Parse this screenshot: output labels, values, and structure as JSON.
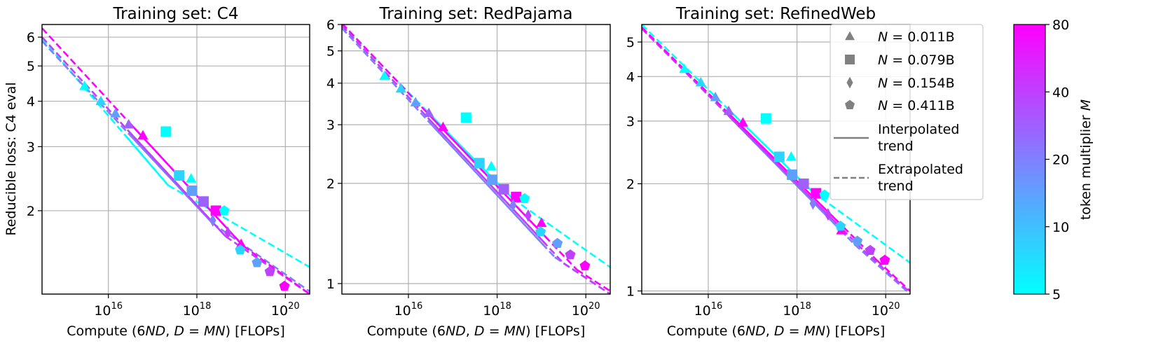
{
  "x_label_parts": [
    "Compute (6",
    "ND",
    ", ",
    "D",
    " = ",
    "MN",
    ") [FLOPs]"
  ],
  "y_label": "Reducible loss: C4 eval",
  "x_tick_base": "10",
  "x_tick_exps": [
    "16",
    "18",
    "20"
  ],
  "legend": {
    "markers": [
      {
        "shape": "triangle",
        "sym": "N",
        "eq": " = ",
        "val": "0.011B"
      },
      {
        "shape": "square",
        "sym": "N",
        "eq": " = ",
        "val": "0.079B"
      },
      {
        "shape": "diamond",
        "sym": "N",
        "eq": " = ",
        "val": "0.154B"
      },
      {
        "shape": "pentagon",
        "sym": "N",
        "eq": " = ",
        "val": "0.411B"
      }
    ],
    "lines": [
      {
        "style": "solid",
        "line1": "Interpolated",
        "line2": "trend"
      },
      {
        "style": "dashed",
        "line1": "Extrapolated",
        "line2": "trend"
      }
    ]
  },
  "colorbar": {
    "label_text": "token multiplier ",
    "label_sym": "M",
    "ticks": [
      "5",
      "10",
      "20",
      "40",
      "80"
    ],
    "min": 5,
    "max": 80,
    "low_color": "#00ffff",
    "high_color": "#ff00ff"
  },
  "chart_data": [
    {
      "type": "scatter",
      "title": "Training set: C4",
      "xlabel": "Compute (6ND, D = MN) [FLOPs]",
      "ylabel": "Reducible loss: C4 eval",
      "xscale": "log",
      "yscale": "log",
      "xlim_log10": [
        14.5,
        20.55
      ],
      "ylim": [
        1.18,
        6.5
      ],
      "y_ticks": [
        {
          "v": 2,
          "label": "2"
        },
        {
          "v": 3,
          "label": "3"
        },
        {
          "v": 4,
          "label": "4"
        },
        {
          "v": 5,
          "label": "5"
        },
        {
          "v": 6,
          "label": "6"
        }
      ],
      "trends": [
        {
          "M": 5,
          "p1": [
            14.5,
            5.95
          ],
          "pS": [
            17.35,
            2.35
          ],
          "p2": [
            20.55,
            1.4
          ]
        },
        {
          "M": 20,
          "p1": [
            14.5,
            5.85
          ],
          "pS": [
            18.35,
            1.85
          ],
          "p2": [
            20.55,
            1.2
          ]
        },
        {
          "M": 40,
          "p1": [
            14.5,
            6.0
          ],
          "pS": [
            18.65,
            1.7
          ],
          "p2": [
            20.55,
            1.18
          ]
        },
        {
          "M": 80,
          "p1": [
            14.5,
            6.35
          ],
          "pS": [
            19.05,
            1.6
          ],
          "p2": [
            20.55,
            1.18
          ]
        }
      ],
      "points": [
        {
          "shape": "triangle",
          "logx": 15.46,
          "y": 4.4,
          "M": 5
        },
        {
          "shape": "triangle",
          "logx": 15.83,
          "y": 4.0,
          "M": 8
        },
        {
          "shape": "triangle",
          "logx": 16.16,
          "y": 3.7,
          "M": 14
        },
        {
          "shape": "triangle",
          "logx": 16.46,
          "y": 3.45,
          "M": 28
        },
        {
          "shape": "triangle",
          "logx": 16.78,
          "y": 3.22,
          "M": 80
        },
        {
          "shape": "square",
          "logx": 17.3,
          "y": 3.3,
          "M": 5
        },
        {
          "shape": "square",
          "logx": 17.6,
          "y": 2.5,
          "M": 8
        },
        {
          "shape": "triangle",
          "logx": 17.87,
          "y": 2.45,
          "M": 5
        },
        {
          "shape": "square",
          "logx": 17.89,
          "y": 2.27,
          "M": 14
        },
        {
          "shape": "square",
          "logx": 18.15,
          "y": 2.12,
          "M": 28
        },
        {
          "shape": "square",
          "logx": 18.43,
          "y": 2.0,
          "M": 80
        },
        {
          "shape": "pentagon",
          "logx": 18.62,
          "y": 2.0,
          "M": 5
        },
        {
          "shape": "diamond",
          "logx": 18.36,
          "y": 1.88,
          "M": 20
        },
        {
          "shape": "diamond",
          "logx": 18.7,
          "y": 1.74,
          "M": 40
        },
        {
          "shape": "triangle",
          "logx": 19.0,
          "y": 1.62,
          "M": 80
        },
        {
          "shape": "pentagon",
          "logx": 18.98,
          "y": 1.56,
          "M": 8
        },
        {
          "shape": "pentagon",
          "logx": 19.36,
          "y": 1.44,
          "M": 14
        },
        {
          "shape": "pentagon",
          "logx": 19.65,
          "y": 1.36,
          "M": 40
        },
        {
          "shape": "pentagon",
          "logx": 19.98,
          "y": 1.24,
          "M": 80
        }
      ]
    },
    {
      "type": "scatter",
      "title": "Training set: RedPajama",
      "xlabel": "Compute (6ND, D = MN) [FLOPs]",
      "ylabel": "",
      "xscale": "log",
      "yscale": "log",
      "xlim_log10": [
        14.5,
        20.55
      ],
      "ylim": [
        0.93,
        6.0
      ],
      "y_ticks": [
        {
          "v": 1,
          "label": "1"
        },
        {
          "v": 2,
          "label": "2"
        },
        {
          "v": 3,
          "label": "3"
        },
        {
          "v": 4,
          "label": "4"
        },
        {
          "v": 5,
          "label": "5"
        },
        {
          "v": 6,
          "label": "6"
        }
      ],
      "trends": [
        {
          "M": 5,
          "p1": [
            14.5,
            6.0
          ],
          "pS": [
            18.35,
            1.8
          ],
          "p2": [
            20.55,
            1.12
          ]
        },
        {
          "M": 20,
          "p1": [
            14.5,
            5.85
          ],
          "pS": [
            19.3,
            1.2
          ],
          "p2": [
            20.55,
            0.93
          ]
        },
        {
          "M": 40,
          "p1": [
            14.5,
            5.95
          ],
          "pS": [
            19.5,
            1.15
          ],
          "p2": [
            20.55,
            0.93
          ]
        },
        {
          "M": 80,
          "p1": [
            14.5,
            6.05
          ],
          "pS": [
            19.8,
            1.1
          ],
          "p2": [
            20.55,
            0.95
          ]
        }
      ],
      "points": [
        {
          "shape": "triangle",
          "logx": 15.46,
          "y": 4.2,
          "M": 5
        },
        {
          "shape": "triangle",
          "logx": 15.83,
          "y": 3.85,
          "M": 8
        },
        {
          "shape": "triangle",
          "logx": 16.16,
          "y": 3.5,
          "M": 14
        },
        {
          "shape": "triangle",
          "logx": 16.46,
          "y": 3.25,
          "M": 28
        },
        {
          "shape": "triangle",
          "logx": 16.78,
          "y": 2.95,
          "M": 80
        },
        {
          "shape": "square",
          "logx": 17.3,
          "y": 3.15,
          "M": 5
        },
        {
          "shape": "square",
          "logx": 17.6,
          "y": 2.3,
          "M": 8
        },
        {
          "shape": "triangle",
          "logx": 17.87,
          "y": 2.25,
          "M": 5
        },
        {
          "shape": "square",
          "logx": 17.89,
          "y": 2.05,
          "M": 14
        },
        {
          "shape": "square",
          "logx": 18.15,
          "y": 1.92,
          "M": 28
        },
        {
          "shape": "square",
          "logx": 18.43,
          "y": 1.82,
          "M": 80
        },
        {
          "shape": "pentagon",
          "logx": 18.62,
          "y": 1.8,
          "M": 5
        },
        {
          "shape": "diamond",
          "logx": 18.36,
          "y": 1.72,
          "M": 20
        },
        {
          "shape": "diamond",
          "logx": 18.7,
          "y": 1.6,
          "M": 40
        },
        {
          "shape": "triangle",
          "logx": 19.0,
          "y": 1.52,
          "M": 80
        },
        {
          "shape": "pentagon",
          "logx": 18.98,
          "y": 1.43,
          "M": 8
        },
        {
          "shape": "pentagon",
          "logx": 19.36,
          "y": 1.32,
          "M": 14
        },
        {
          "shape": "pentagon",
          "logx": 19.65,
          "y": 1.22,
          "M": 40
        },
        {
          "shape": "pentagon",
          "logx": 19.98,
          "y": 1.13,
          "M": 80
        }
      ]
    },
    {
      "type": "scatter",
      "title": "Training set: RefinedWeb",
      "xlabel": "Compute (6ND, D = MN) [FLOPs]",
      "ylabel": "",
      "xscale": "log",
      "yscale": "log",
      "xlim_log10": [
        14.5,
        20.55
      ],
      "ylim": [
        0.98,
        5.6
      ],
      "y_ticks": [
        {
          "v": 1,
          "label": "1"
        },
        {
          "v": 2,
          "label": "2"
        },
        {
          "v": 3,
          "label": "3"
        },
        {
          "v": 4,
          "label": "4"
        },
        {
          "v": 5,
          "label": "5"
        }
      ],
      "trends": [
        {
          "M": 5,
          "p1": [
            14.5,
            5.6
          ],
          "pS": [
            18.35,
            1.9
          ],
          "p2": [
            20.55,
            1.2
          ]
        },
        {
          "M": 20,
          "p1": [
            14.5,
            5.5
          ],
          "pS": [
            19.3,
            1.35
          ],
          "p2": [
            20.55,
            0.98
          ]
        },
        {
          "M": 40,
          "p1": [
            14.5,
            5.45
          ],
          "pS": [
            19.5,
            1.3
          ],
          "p2": [
            20.55,
            0.99
          ]
        },
        {
          "M": 80,
          "p1": [
            14.5,
            5.5
          ],
          "pS": [
            19.8,
            1.22
          ],
          "p2": [
            20.55,
            1.0
          ]
        }
      ],
      "points": [
        {
          "shape": "triangle",
          "logx": 15.46,
          "y": 4.2,
          "M": 5
        },
        {
          "shape": "triangle",
          "logx": 15.83,
          "y": 3.85,
          "M": 8
        },
        {
          "shape": "triangle",
          "logx": 16.16,
          "y": 3.5,
          "M": 14
        },
        {
          "shape": "triangle",
          "logx": 16.46,
          "y": 3.2,
          "M": 28
        },
        {
          "shape": "triangle",
          "logx": 16.78,
          "y": 2.97,
          "M": 80
        },
        {
          "shape": "square",
          "logx": 17.3,
          "y": 3.05,
          "M": 5
        },
        {
          "shape": "square",
          "logx": 17.6,
          "y": 2.38,
          "M": 8
        },
        {
          "shape": "triangle",
          "logx": 17.87,
          "y": 2.38,
          "M": 5
        },
        {
          "shape": "square",
          "logx": 17.89,
          "y": 2.12,
          "M": 14
        },
        {
          "shape": "square",
          "logx": 18.15,
          "y": 2.0,
          "M": 28
        },
        {
          "shape": "square",
          "logx": 18.43,
          "y": 1.88,
          "M": 80
        },
        {
          "shape": "pentagon",
          "logx": 18.62,
          "y": 1.86,
          "M": 5
        },
        {
          "shape": "diamond",
          "logx": 18.36,
          "y": 1.76,
          "M": 20
        },
        {
          "shape": "diamond",
          "logx": 18.7,
          "y": 1.64,
          "M": 40
        },
        {
          "shape": "triangle",
          "logx": 19.0,
          "y": 1.48,
          "M": 80
        },
        {
          "shape": "pentagon",
          "logx": 18.98,
          "y": 1.52,
          "M": 8
        },
        {
          "shape": "pentagon",
          "logx": 19.36,
          "y": 1.38,
          "M": 14
        },
        {
          "shape": "pentagon",
          "logx": 19.65,
          "y": 1.3,
          "M": 40
        },
        {
          "shape": "pentagon",
          "logx": 19.98,
          "y": 1.22,
          "M": 80
        }
      ]
    }
  ]
}
